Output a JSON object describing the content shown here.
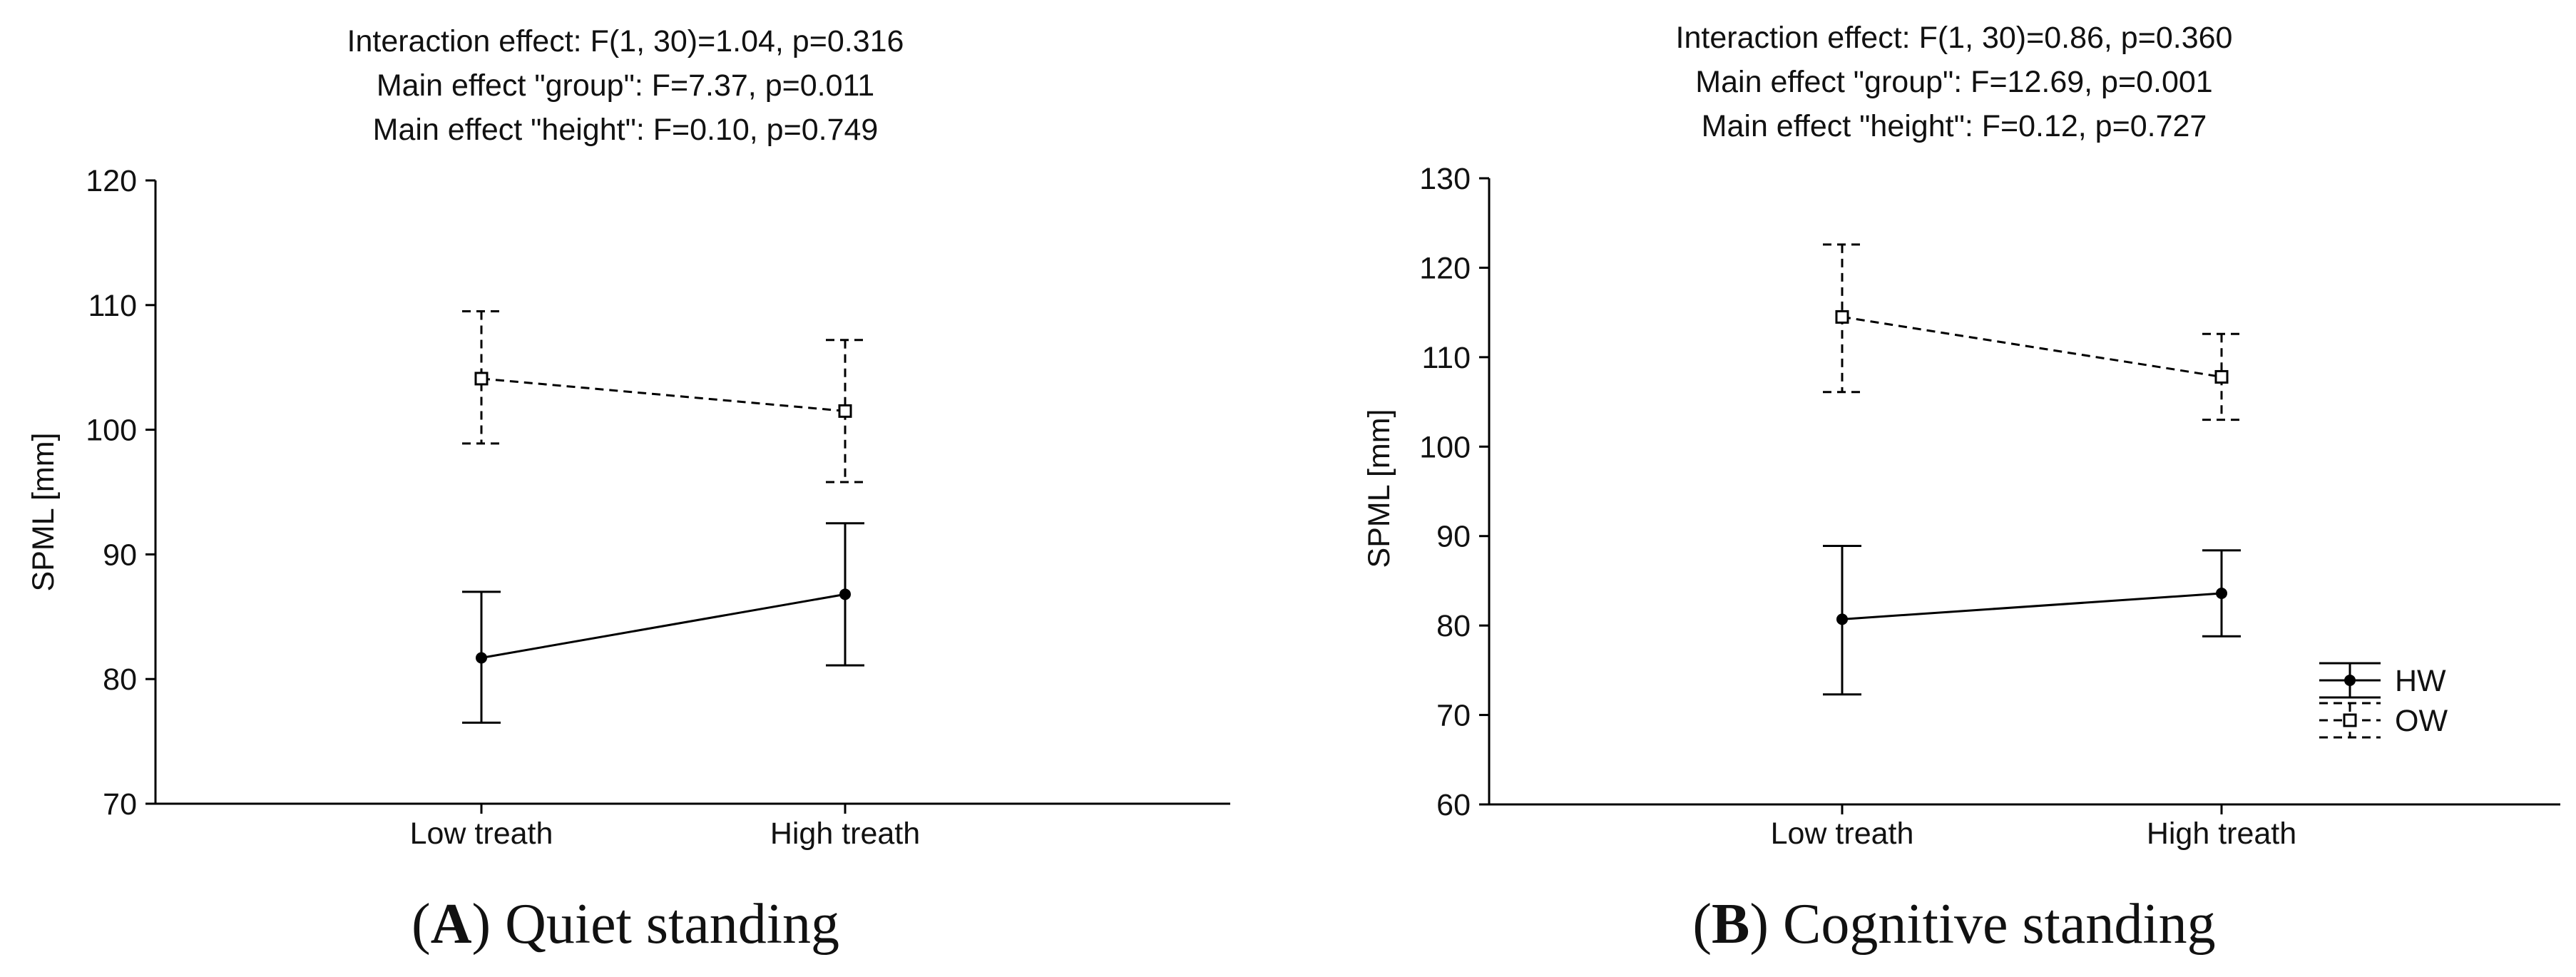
{
  "chart_data": [
    {
      "type": "line",
      "panel_letter": "A",
      "panel_title": "Quiet standing",
      "caption_open": "(",
      "caption_close": ")",
      "annotations": [
        "Interaction effect: F(1, 30)=1.04, p=0.316",
        "Main effect \"group\": F=7.37, p=0.011",
        "Main effect \"height\": F=0.10, p=0.749"
      ],
      "ylabel": "SPML [mm]",
      "xlabel": "",
      "ylim": [
        70,
        120
      ],
      "yticks": [
        70,
        80,
        90,
        100,
        110,
        120
      ],
      "categories": [
        "Low treath",
        "High treath"
      ],
      "series": [
        {
          "name": "HW",
          "style": "solid",
          "marker": "circle",
          "values": [
            81.7,
            86.8
          ],
          "err_low": [
            76.5,
            81.1
          ],
          "err_high": [
            87.0,
            92.5
          ]
        },
        {
          "name": "OW",
          "style": "dashed",
          "marker": "square",
          "values": [
            104.1,
            101.5
          ],
          "err_low": [
            98.9,
            95.8
          ],
          "err_high": [
            109.5,
            107.2
          ]
        }
      ],
      "legend": false
    },
    {
      "type": "line",
      "panel_letter": "B",
      "panel_title": "Cognitive standing",
      "caption_open": "(",
      "caption_close": ")",
      "annotations": [
        "Interaction effect:  F(1, 30)=0.86, p=0.360",
        "Main effect \"group\": F=12.69, p=0.001",
        "Main effect \"height\": F=0.12, p=0.727"
      ],
      "ylabel": "SPML [mm]",
      "xlabel": "",
      "ylim": [
        60,
        130
      ],
      "yticks": [
        60,
        70,
        80,
        90,
        100,
        110,
        120,
        130
      ],
      "categories": [
        "Low treath",
        "High treath"
      ],
      "series": [
        {
          "name": "HW",
          "style": "solid",
          "marker": "circle",
          "values": [
            80.7,
            83.6
          ],
          "err_low": [
            72.3,
            78.8
          ],
          "err_high": [
            88.9,
            88.4
          ]
        },
        {
          "name": "OW",
          "style": "dashed",
          "marker": "square",
          "values": [
            114.5,
            107.8
          ],
          "err_low": [
            106.1,
            103.0
          ],
          "err_high": [
            122.6,
            112.6
          ]
        }
      ],
      "legend": true,
      "legend_position": "right"
    }
  ]
}
